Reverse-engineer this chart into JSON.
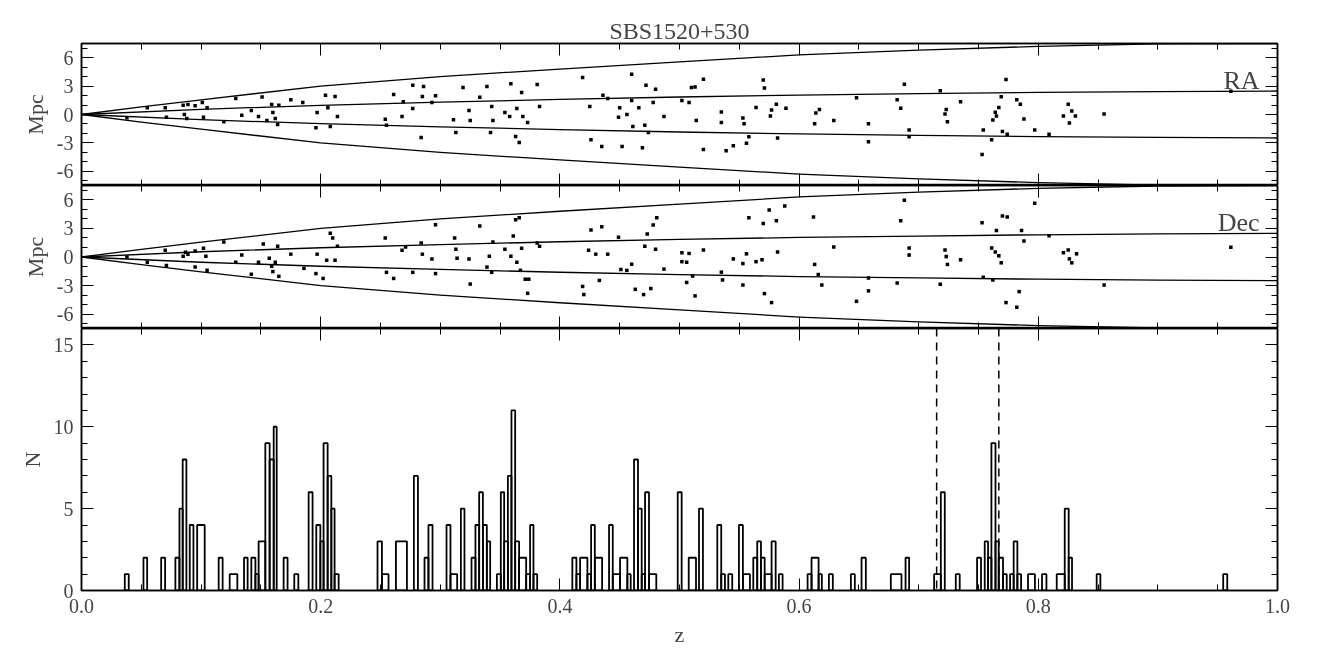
{
  "chart_data": [
    {
      "type": "scatter",
      "title": "SBS1520+530",
      "ylabel": "Mpc",
      "annotations": [
        "RA"
      ],
      "xlim": [
        0,
        1
      ],
      "xticks": [
        {
          "value": 0,
          "label": null
        },
        {
          "value": 0.2,
          "label": null
        },
        {
          "value": 0.4,
          "label": null
        },
        {
          "value": 0.6,
          "label": null
        },
        {
          "value": 0.8,
          "label": null
        },
        {
          "value": 1.0,
          "label": null
        }
      ],
      "ylim": [
        -7.5,
        7.5
      ],
      "yticks": [
        -6,
        -3,
        0,
        3,
        6
      ],
      "tick_labels": "y",
      "series": [
        {
          "type": "scatter",
          "marker": "square",
          "color": "#000000",
          "x": [
            0.038,
            0.055,
            0.07,
            0.071,
            0.085,
            0.086,
            0.088,
            0.089,
            0.095,
            0.101,
            0.102,
            0.105,
            0.119,
            0.129,
            0.134,
            0.142,
            0.148,
            0.151,
            0.155,
            0.159,
            0.16,
            0.162,
            0.164,
            0.165,
            0.175,
            0.185,
            0.196,
            0.197,
            0.204,
            0.206,
            0.208,
            0.212,
            0.214,
            0.254,
            0.255,
            0.261,
            0.268,
            0.269,
            0.277,
            0.277,
            0.284,
            0.285,
            0.286,
            0.293,
            0.296,
            0.311,
            0.313,
            0.319,
            0.324,
            0.325,
            0.333,
            0.339,
            0.342,
            0.343,
            0.344,
            0.354,
            0.358,
            0.359,
            0.363,
            0.364,
            0.366,
            0.368,
            0.369,
            0.373,
            0.381,
            0.383,
            0.419,
            0.425,
            0.426,
            0.435,
            0.436,
            0.44,
            0.449,
            0.45,
            0.452,
            0.456,
            0.46,
            0.46,
            0.461,
            0.466,
            0.469,
            0.471,
            0.472,
            0.474,
            0.478,
            0.48,
            0.487,
            0.502,
            0.508,
            0.51,
            0.513,
            0.514,
            0.52,
            0.52,
            0.535,
            0.535,
            0.539,
            0.545,
            0.553,
            0.554,
            0.556,
            0.558,
            0.564,
            0.57,
            0.571,
            0.576,
            0.577,
            0.581,
            0.582,
            0.589,
            0.613,
            0.614,
            0.617,
            0.629,
            0.648,
            0.658,
            0.658,
            0.682,
            0.685,
            0.688,
            0.692,
            0.692,
            0.718,
            0.722,
            0.723,
            0.724,
            0.735,
            0.753,
            0.754,
            0.761,
            0.762,
            0.764,
            0.765,
            0.767,
            0.769,
            0.77,
            0.773,
            0.774,
            0.782,
            0.785,
            0.788,
            0.797,
            0.809,
            0.821,
            0.825,
            0.826,
            0.828,
            0.831,
            0.855,
            0.961
          ],
          "values": [
            -0.34,
            0.72,
            0.72,
            -0.3,
            0.97,
            0,
            -0.42,
            1.06,
            0.93,
            1.27,
            -0.3,
            0.72,
            -0.76,
            1.69,
            -0.08,
            0.42,
            -0.21,
            1.86,
            -0.64,
            1.06,
            0.21,
            -0.42,
            -1.06,
            0.97,
            1.57,
            1.27,
            -1.4,
            0.21,
            2.03,
            0.72,
            -1.27,
            1.9,
            -0.21,
            -0.51,
            -1.14,
            2.12,
            -0.21,
            1.36,
            3.09,
            0.64,
            -2.42,
            1.9,
            2.97,
            1.27,
            1.99,
            -0.55,
            -1.91,
            2.84,
            0.42,
            -0.64,
            1.82,
            2.97,
            -1.91,
            0.85,
            -0.64,
            0.21,
            -0.21,
            3.26,
            -2.33,
            0.64,
            -2.97,
            2.33,
            -0.21,
            -0.85,
            3.18,
            0.85,
            3.9,
            0.85,
            -2.67,
            -3.39,
            2.03,
            1.69,
            -0.3,
            0.72,
            -3.39,
            0,
            4.24,
            1.48,
            -1.27,
            0.72,
            -3.52,
            -1.14,
            3.09,
            -1.91,
            1.27,
            2.67,
            -0.21,
            1.48,
            1.27,
            2.84,
            2.91,
            -0.64,
            3.73,
            -3.69,
            0.26,
            -0.85,
            -3.83,
            -3.31,
            -0.36,
            -0.99,
            -3.04,
            -2.35,
            0.75,
            3.65,
            2.79,
            -0.15,
            0.47,
            1.08,
            -2.47,
            0.67,
            -0.99,
            0.16,
            0.53,
            -0.64,
            1.77,
            -0.99,
            -2.88,
            1.56,
            0.67,
            3.2,
            -1.64,
            -2.35,
            2.51,
            0.06,
            0.53,
            -0.77,
            1.35,
            -4.22,
            -1.64,
            -2.67,
            -0.57,
            0.24,
            -0.16,
            0.73,
            1.87,
            -1.8,
            3.69,
            -2.08,
            1.56,
            1.08,
            -0.48,
            -1.64,
            -2.08,
            -0.16,
            1.08,
            -0.89,
            0.37,
            -0.16,
            0.04,
            2.45
          ]
        },
        {
          "type": "line",
          "marker": "none",
          "color": "#000000",
          "x": [
            0,
            0.05,
            0.1,
            0.2,
            0.3,
            0.4,
            0.5,
            0.6,
            0.7,
            0.8,
            0.9,
            1.0
          ],
          "values": [
            0,
            0.8,
            1.55,
            3.0,
            4.0,
            4.8,
            5.55,
            6.3,
            6.8,
            7.2,
            7.45,
            7.5
          ]
        },
        {
          "type": "line",
          "marker": "none",
          "color": "#000000",
          "x": [
            0,
            0.1,
            0.2,
            0.3,
            0.4,
            0.5,
            0.6,
            0.7,
            0.8,
            0.9,
            1.0
          ],
          "values": [
            0,
            0.55,
            0.97,
            1.3,
            1.6,
            1.85,
            2.05,
            2.2,
            2.33,
            2.42,
            2.48
          ]
        },
        {
          "type": "line",
          "marker": "none",
          "color": "#000000",
          "x": [
            0,
            0.1,
            0.2,
            0.3,
            0.4,
            0.5,
            0.6,
            0.7,
            0.8,
            0.9,
            1.0
          ],
          "values": [
            0,
            -0.55,
            -0.97,
            -1.3,
            -1.6,
            -1.85,
            -2.05,
            -2.2,
            -2.33,
            -2.42,
            -2.48
          ]
        },
        {
          "type": "line",
          "marker": "none",
          "color": "#000000",
          "x": [
            0,
            0.05,
            0.1,
            0.2,
            0.3,
            0.4,
            0.5,
            0.6,
            0.7,
            0.8,
            0.9,
            1.0
          ],
          "values": [
            0,
            -0.8,
            -1.55,
            -3.0,
            -4.0,
            -4.8,
            -5.55,
            -6.3,
            -6.8,
            -7.2,
            -7.45,
            -7.5
          ]
        }
      ]
    },
    {
      "type": "scatter",
      "ylabel": "Mpc",
      "annotations": [
        "Dec"
      ],
      "xlim": [
        0,
        1
      ],
      "xticks": [
        {
          "value": 0,
          "label": null
        },
        {
          "value": 0.2,
          "label": null
        },
        {
          "value": 0.4,
          "label": null
        },
        {
          "value": 0.6,
          "label": null
        },
        {
          "value": 0.8,
          "label": null
        },
        {
          "value": 1.0,
          "label": null
        }
      ],
      "ylim": [
        -7.5,
        7.5
      ],
      "yticks": [
        -6,
        -3,
        0,
        3,
        6
      ],
      "tick_labels": "y",
      "series": [
        {
          "type": "scatter",
          "marker": "square",
          "color": "#000000",
          "x": [
            0.038,
            0.055,
            0.07,
            0.071,
            0.085,
            0.087,
            0.089,
            0.095,
            0.095,
            0.102,
            0.104,
            0.105,
            0.119,
            0.129,
            0.134,
            0.142,
            0.148,
            0.152,
            0.157,
            0.159,
            0.16,
            0.162,
            0.164,
            0.165,
            0.175,
            0.186,
            0.196,
            0.197,
            0.202,
            0.205,
            0.208,
            0.21,
            0.212,
            0.214,
            0.254,
            0.255,
            0.261,
            0.268,
            0.271,
            0.277,
            0.284,
            0.285,
            0.293,
            0.296,
            0.296,
            0.312,
            0.313,
            0.314,
            0.324,
            0.325,
            0.333,
            0.339,
            0.341,
            0.343,
            0.344,
            0.354,
            0.359,
            0.361,
            0.363,
            0.364,
            0.366,
            0.367,
            0.368,
            0.371,
            0.373,
            0.374,
            0.381,
            0.383,
            0.419,
            0.42,
            0.426,
            0.424,
            0.43,
            0.433,
            0.435,
            0.44,
            0.449,
            0.451,
            0.456,
            0.46,
            0.463,
            0.47,
            0.471,
            0.473,
            0.476,
            0.478,
            0.48,
            0.481,
            0.487,
            0.506,
            0.508,
            0.506,
            0.502,
            0.502,
            0.511,
            0.513,
            0.52,
            0.535,
            0.536,
            0.545,
            0.553,
            0.553,
            0.556,
            0.558,
            0.564,
            0.569,
            0.57,
            0.571,
            0.575,
            0.577,
            0.581,
            0.582,
            0.588,
            0.612,
            0.613,
            0.616,
            0.619,
            0.629,
            0.648,
            0.658,
            0.658,
            0.682,
            0.685,
            0.688,
            0.692,
            0.692,
            0.718,
            0.722,
            0.723,
            0.724,
            0.735,
            0.753,
            0.754,
            0.761,
            0.762,
            0.764,
            0.765,
            0.767,
            0.769,
            0.77,
            0.773,
            0.774,
            0.782,
            0.784,
            0.786,
            0.788,
            0.797,
            0.809,
            0.821,
            0.825,
            0.826,
            0.828,
            0.832,
            0.855,
            0.961
          ],
          "values": [
            0,
            -0.55,
            0.72,
            -0.89,
            0.08,
            0.51,
            0.3,
            0.64,
            -1.06,
            0.93,
            0.08,
            -1.4,
            1.57,
            -0.55,
            0.21,
            -1.82,
            -0.55,
            1.36,
            -0.13,
            -0.97,
            -1.53,
            -0.55,
            1.14,
            -2.03,
            0.3,
            -1.19,
            -1.74,
            0.3,
            -2.25,
            -0.34,
            2.5,
            1.99,
            -0.34,
            1.14,
            1.99,
            -1.61,
            -2.25,
            0.72,
            1.06,
            -1.61,
            1.48,
            0.3,
            -0.21,
            3.39,
            -1.74,
            1.99,
            0.81,
            -0.13,
            -0.21,
            -2.84,
            3.26,
            -1.06,
            0.08,
            -1.61,
            1.57,
            0.81,
            0.08,
            2.2,
            3.9,
            -0.55,
            4.11,
            -1.4,
            0.93,
            -2.33,
            -3.81,
            -2.33,
            1.48,
            1.14,
            -3.09,
            -3.94,
            2.84,
            0.72,
            0.3,
            -2.46,
            3.18,
            0.3,
            2.08,
            -1.31,
            -1.4,
            -0.76,
            -3.39,
            -3.94,
            1.14,
            2.42,
            -3.31,
            3.35,
            0.81,
            4.11,
            -1.27,
            -0.55,
            0.38,
            -2.67,
            0.45,
            -0.49,
            -2.0,
            -4.08,
            0.73,
            -1.59,
            -2.41,
            -0.2,
            -0.69,
            -2.94,
            0.33,
            4.12,
            -0.49,
            -0.29,
            3.51,
            -3.84,
            4.94,
            -4.78,
            3.8,
            0.53,
            5.35,
            4.2,
            -0.78,
            -1.84,
            -2.94,
            1.06,
            -4.65,
            -2.2,
            -3.55,
            -2.73,
            3.8,
            5.96,
            0.94,
            0.2,
            -2.86,
            0.73,
            0.04,
            -0.78,
            -0.29,
            3.59,
            -2.12,
            0.94,
            -2.41,
            0.53,
            2.78,
            0.12,
            -0.61,
            4.29,
            -4.78,
            4.2,
            -5.27,
            -3.63,
            2.78,
            1.67,
            5.63,
            2.24,
            0.45,
            0.73,
            -0.2,
            -0.61,
            0.33,
            -2.94,
            1.02
          ]
        },
        {
          "type": "line",
          "marker": "none",
          "color": "#000000",
          "x": [
            0,
            0.05,
            0.1,
            0.2,
            0.3,
            0.4,
            0.5,
            0.6,
            0.7,
            0.8,
            0.9,
            1.0
          ],
          "values": [
            0,
            0.8,
            1.55,
            3.0,
            4.0,
            4.8,
            5.55,
            6.3,
            6.8,
            7.2,
            7.45,
            7.5
          ]
        },
        {
          "type": "line",
          "marker": "none",
          "color": "#000000",
          "x": [
            0,
            0.1,
            0.2,
            0.3,
            0.4,
            0.5,
            0.6,
            0.7,
            0.8,
            0.9,
            1.0
          ],
          "values": [
            0,
            0.55,
            0.97,
            1.3,
            1.6,
            1.85,
            2.05,
            2.2,
            2.33,
            2.42,
            2.48
          ]
        },
        {
          "type": "line",
          "marker": "none",
          "color": "#000000",
          "x": [
            0,
            0.1,
            0.2,
            0.3,
            0.4,
            0.5,
            0.6,
            0.7,
            0.8,
            0.9,
            1.0
          ],
          "values": [
            0,
            -0.55,
            -0.97,
            -1.3,
            -1.6,
            -1.85,
            -2.05,
            -2.2,
            -2.33,
            -2.42,
            -2.48
          ]
        },
        {
          "type": "line",
          "marker": "none",
          "color": "#000000",
          "x": [
            0,
            0.05,
            0.1,
            0.2,
            0.3,
            0.4,
            0.5,
            0.6,
            0.7,
            0.8,
            0.9,
            1.0
          ],
          "values": [
            0,
            -0.8,
            -1.55,
            -3.0,
            -4.0,
            -4.8,
            -5.55,
            -6.3,
            -6.8,
            -7.2,
            -7.45,
            -7.5
          ]
        }
      ]
    },
    {
      "type": "histogram",
      "xlabel": "z",
      "ylabel": "N",
      "color": "#000000",
      "xlim": [
        0,
        1
      ],
      "xticks": [
        {
          "value": 0,
          "label": "0.0"
        },
        0.2,
        0.4,
        0.6,
        0.8,
        {
          "value": 1.0,
          "label": "1.0"
        }
      ],
      "ylim": [
        0,
        16
      ],
      "yticks": [
        0,
        5,
        10,
        15
      ],
      "ref_lines": [
        {
          "axis": "x",
          "value": 0.715,
          "line_style": "dashed"
        },
        {
          "axis": "x",
          "value": 0.767,
          "line_style": "dashed"
        }
      ],
      "bins": [
        0.0362,
        0.0395,
        0.0518,
        0.0549,
        0.0666,
        0.0699,
        0.0785,
        0.0819,
        0.0846,
        0.0877,
        0.0905,
        0.0936,
        0.0967,
        0.103,
        0.1147,
        0.118,
        0.1239,
        0.1303,
        0.1359,
        0.1389,
        0.142,
        0.1454,
        0.1481,
        0.1537,
        0.1573,
        0.1607,
        0.1632,
        0.169,
        0.1723,
        0.1779,
        0.1813,
        0.1899,
        0.1932,
        0.1963,
        0.1997,
        0.2024,
        0.2058,
        0.2089,
        0.2116,
        0.215,
        0.2475,
        0.2512,
        0.2567,
        0.2629,
        0.2721,
        0.2779,
        0.2813,
        0.2868,
        0.2901,
        0.2935,
        0.3052,
        0.3085,
        0.3141,
        0.3172,
        0.3202,
        0.3261,
        0.3294,
        0.3325,
        0.3356,
        0.3389,
        0.3417,
        0.3473,
        0.3506,
        0.3534,
        0.3565,
        0.3595,
        0.3626,
        0.3659,
        0.3718,
        0.3751,
        0.3779,
        0.381,
        0.4104,
        0.4138,
        0.4169,
        0.423,
        0.4261,
        0.4292,
        0.4353,
        0.4411,
        0.4442,
        0.4503,
        0.4564,
        0.4592,
        0.462,
        0.4653,
        0.4684,
        0.4712,
        0.4745,
        0.4806,
        0.4985,
        0.5018,
        0.5077,
        0.5138,
        0.5163,
        0.5196,
        0.5316,
        0.5349,
        0.538,
        0.5408,
        0.5441,
        0.5497,
        0.553,
        0.5589,
        0.5617,
        0.565,
        0.5681,
        0.5712,
        0.577,
        0.5804,
        0.5831,
        0.5862,
        0.6071,
        0.6104,
        0.6163,
        0.619,
        0.6249,
        0.6282,
        0.6433,
        0.6466,
        0.6522,
        0.6558,
        0.6767,
        0.6856,
        0.689,
        0.692,
        0.7129,
        0.7185,
        0.7218,
        0.731,
        0.7343,
        0.7488,
        0.7521,
        0.7552,
        0.758,
        0.7608,
        0.7642,
        0.7669,
        0.7705,
        0.7736,
        0.7764,
        0.7794,
        0.7825,
        0.7856,
        0.7914,
        0.7972,
        0.8031,
        0.8068,
        0.8154,
        0.8221,
        0.8254,
        0.8282,
        0.8488,
        0.8519,
        0.9546,
        0.958
      ],
      "values": [
        1,
        0,
        2,
        0,
        2,
        0,
        2,
        5,
        8,
        0,
        4,
        0,
        4,
        0,
        2,
        0,
        1,
        0,
        2,
        0,
        2,
        1,
        3,
        9,
        8,
        10,
        0,
        2,
        0,
        1,
        0,
        6,
        0,
        4,
        3,
        9,
        7,
        5,
        1,
        0,
        3,
        1,
        0,
        3,
        0,
        7,
        0,
        2,
        4,
        0,
        4,
        1,
        0,
        5,
        0,
        2,
        4,
        6,
        4,
        3,
        0,
        1,
        6,
        3,
        7,
        11,
        3,
        2,
        1,
        4,
        1,
        0,
        2,
        1,
        2,
        1,
        4,
        2,
        0,
        4,
        1,
        2,
        1,
        0,
        8,
        5,
        1,
        6,
        1,
        0,
        6,
        0,
        2,
        0,
        5,
        0,
        4,
        1,
        0,
        1,
        0,
        4,
        1,
        0,
        2,
        3,
        2,
        1,
        3,
        0,
        1,
        0,
        1,
        2,
        1,
        0,
        1,
        0,
        1,
        0,
        2,
        0,
        1,
        0,
        2,
        0,
        1,
        6,
        0,
        1,
        0,
        2,
        0,
        3,
        2,
        9,
        3,
        2,
        1,
        0,
        1,
        3,
        1,
        0,
        1,
        0,
        1,
        0,
        1,
        5,
        2,
        0,
        1,
        0,
        1
      ]
    }
  ]
}
